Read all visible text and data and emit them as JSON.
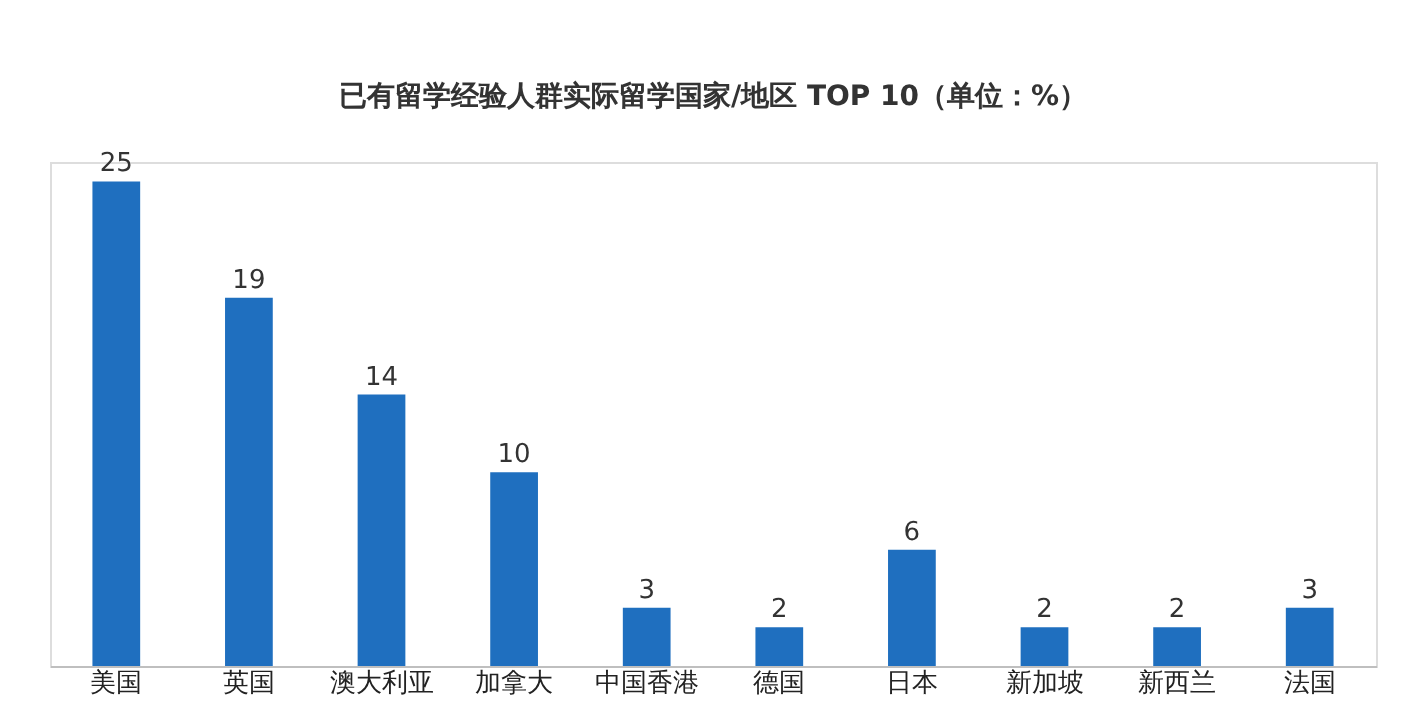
{
  "chart_data": {
    "type": "bar",
    "title": "已有留学经验人群实际留学国家/地区 TOP 10（单位：%）",
    "categories": [
      "美国",
      "英国",
      "澳大利亚",
      "加拿大",
      "中国香港",
      "德国",
      "日本",
      "新加坡",
      "新西兰",
      "法国"
    ],
    "values": [
      25,
      19,
      14,
      10,
      3,
      2,
      6,
      2,
      2,
      3
    ],
    "color": "#1f6fbf",
    "data_labels": true,
    "grid": false
  }
}
